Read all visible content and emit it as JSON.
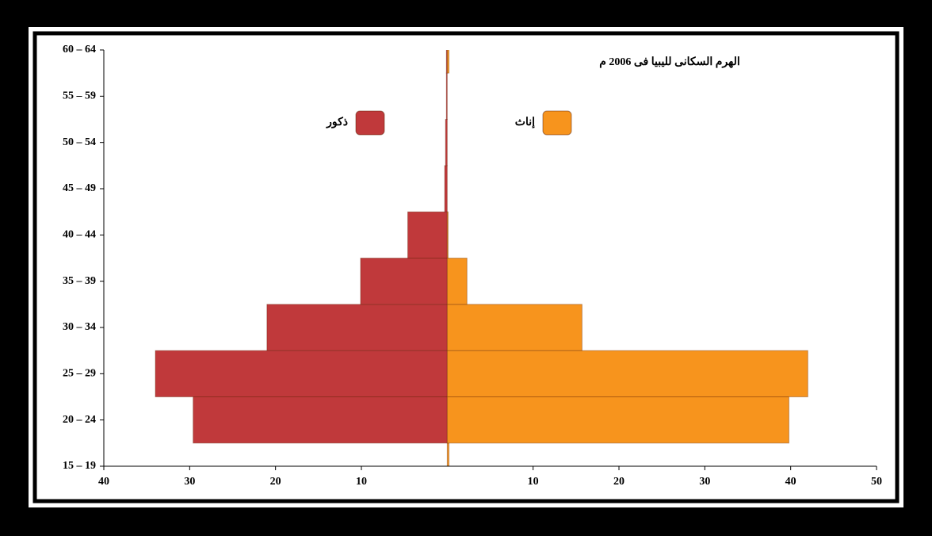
{
  "chart_data": {
    "type": "pyramid",
    "title": "الهرم السكانى لليبيا فى 2006 م",
    "categories": [
      "15 – 19",
      "20 – 24",
      "25 – 29",
      "30 – 34",
      "35 – 39",
      "40 – 44",
      "45 – 49",
      "50 – 54",
      "55 – 59",
      "60 – 64"
    ],
    "series": [
      {
        "name": "ذكور",
        "color": "#c0393b",
        "values": [
          0,
          -29.6,
          -34,
          -21,
          -10.1,
          -4.6,
          -0.3,
          -0.2,
          -0.1,
          -0.1
        ]
      },
      {
        "name": "إناث",
        "color": "#f7941d",
        "values": [
          0.2,
          39.8,
          42,
          15.7,
          2.3,
          0.1,
          0,
          0,
          0,
          0.2
        ]
      }
    ],
    "xlim": [
      -40,
      50
    ],
    "xticks": [
      {
        "value": -40,
        "label": "40"
      },
      {
        "value": -30,
        "label": "30"
      },
      {
        "value": -20,
        "label": "20"
      },
      {
        "value": -10,
        "label": "10"
      },
      10,
      20,
      30,
      40,
      50
    ]
  }
}
